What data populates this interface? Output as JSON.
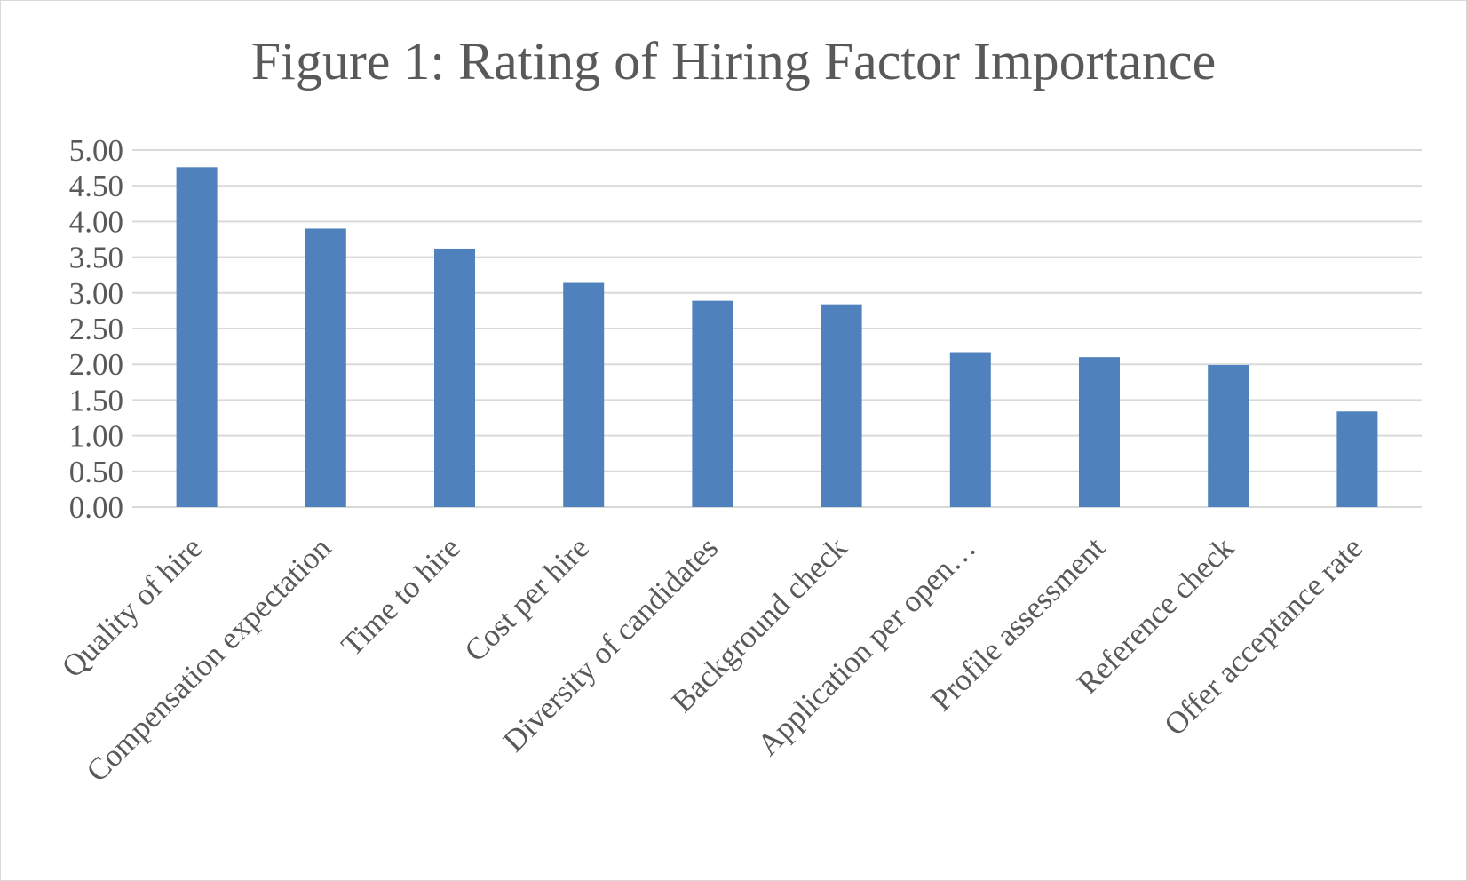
{
  "chart_data": {
    "type": "bar",
    "title": "Figure 1: Rating of Hiring Factor Importance",
    "xlabel": "",
    "ylabel": "",
    "ylim": [
      0,
      5
    ],
    "ytick_step": 0.5,
    "ytick_decimals": 2,
    "grid": true,
    "legend": "none",
    "bar_color": "#4f81bd",
    "grid_color": "#d9d9d9",
    "categories": [
      "Quality of hire",
      "Compensation expectation",
      "Time to hire",
      "Cost per hire",
      "Diversity of candidates",
      "Background check",
      "Application per open…",
      "Profile assessment",
      "Reference check",
      "Offer acceptance rate"
    ],
    "values": [
      4.76,
      3.9,
      3.62,
      3.14,
      2.89,
      2.84,
      2.17,
      2.1,
      1.99,
      1.34
    ]
  }
}
